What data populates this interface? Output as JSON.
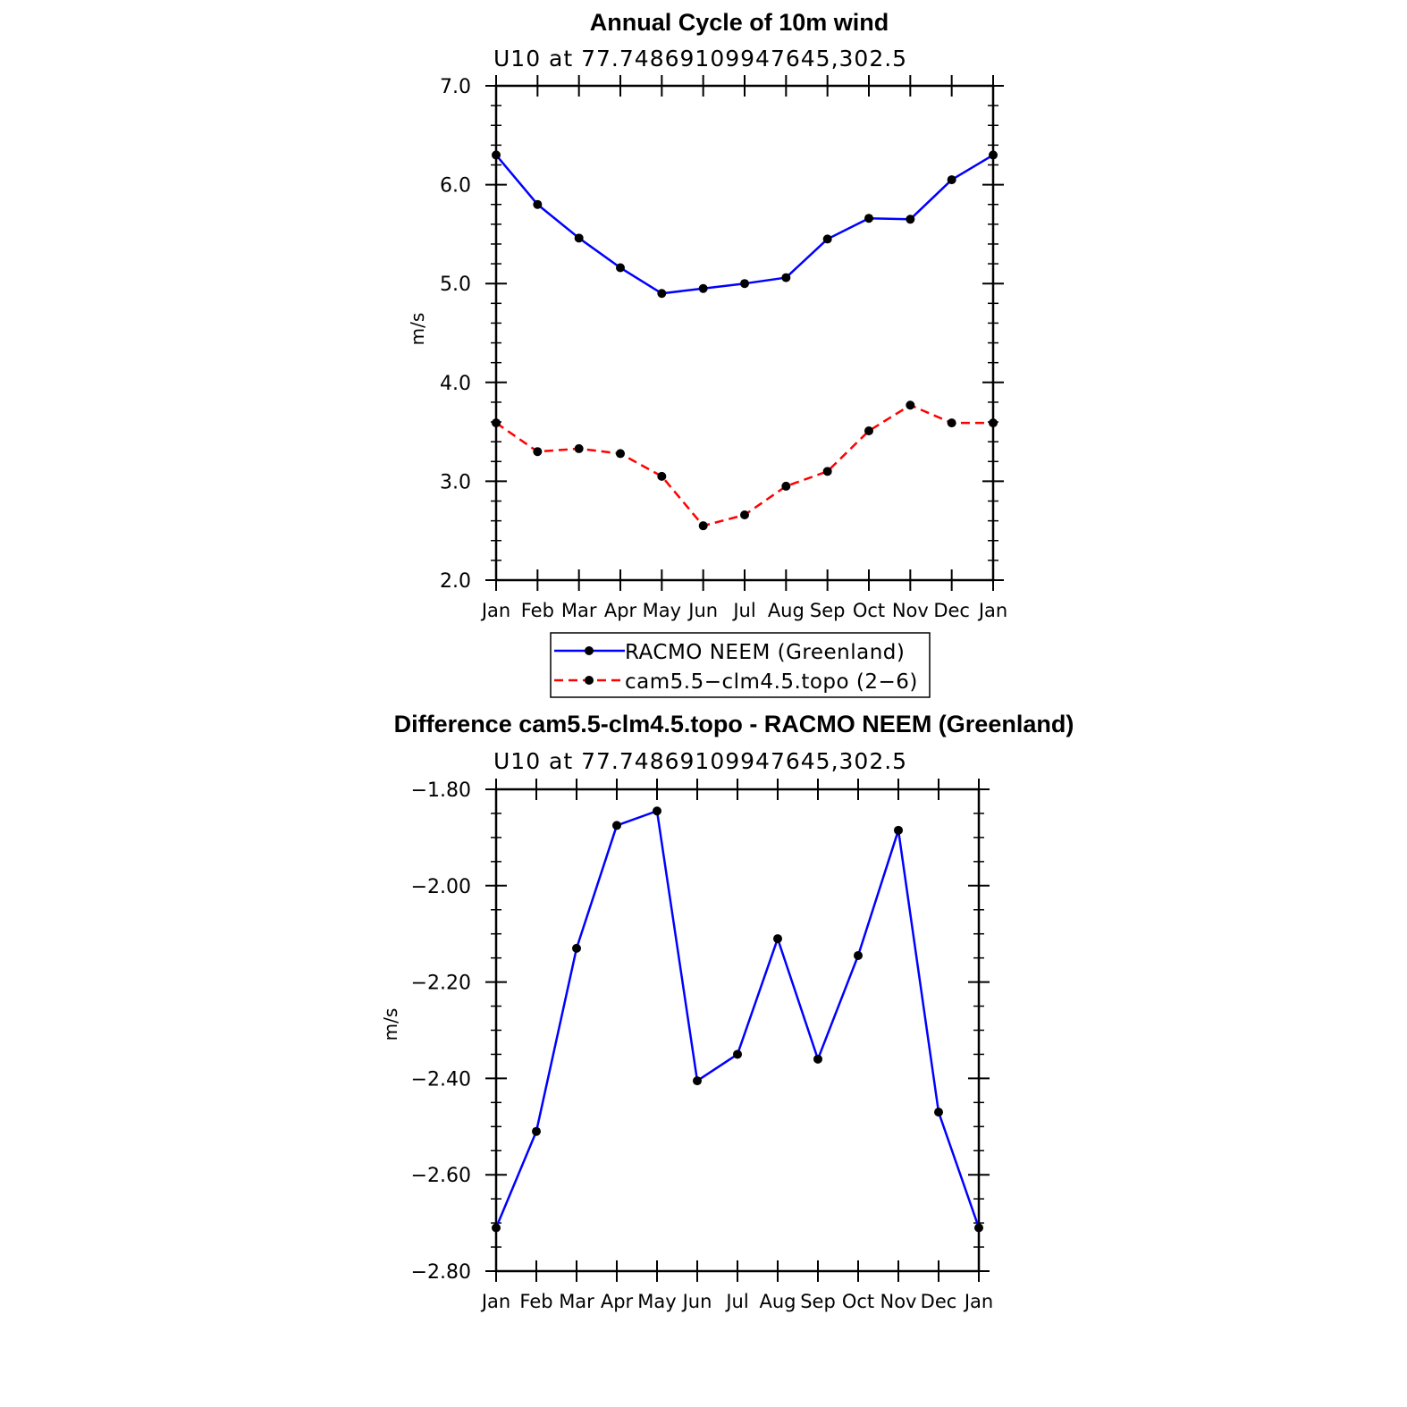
{
  "chart_data": [
    {
      "type": "line",
      "title": "Annual Cycle of 10m wind",
      "subtitle": "U10 at 77.74869109947645,302.5",
      "xlabel": "",
      "ylabel": "m/s",
      "ylim": [
        2.0,
        7.0
      ],
      "yticks": [
        2.0,
        3.0,
        4.0,
        5.0,
        6.0,
        7.0
      ],
      "ytick_labels": [
        "2.0",
        "3.0",
        "4.0",
        "5.0",
        "6.0",
        "7.0"
      ],
      "categories": [
        "Jan",
        "Feb",
        "Mar",
        "Apr",
        "May",
        "Jun",
        "Jul",
        "Aug",
        "Sep",
        "Oct",
        "Nov",
        "Dec",
        "Jan"
      ],
      "grid": false,
      "legend_position": "bottom",
      "series": [
        {
          "name": "RACMO NEEM (Greenland)",
          "color": "#0000ff",
          "dash": "solid",
          "values": [
            6.3,
            5.8,
            5.46,
            5.16,
            4.9,
            4.95,
            5.0,
            5.06,
            5.45,
            5.66,
            5.65,
            6.05,
            6.3
          ]
        },
        {
          "name": "cam5.5−clm4.5.topo (2−6)",
          "color": "#ff0000",
          "dash": "dashed",
          "values": [
            3.59,
            3.3,
            3.33,
            3.28,
            3.05,
            2.55,
            2.66,
            2.95,
            3.1,
            3.51,
            3.77,
            3.59,
            3.59
          ]
        }
      ]
    },
    {
      "type": "line",
      "title": "Difference cam5.5-clm4.5.topo - RACMO NEEM (Greenland)",
      "subtitle": "U10 at 77.74869109947645,302.5",
      "xlabel": "",
      "ylabel": "m/s",
      "ylim": [
        -2.8,
        -1.8
      ],
      "yticks": [
        -2.8,
        -2.6,
        -2.4,
        -2.2,
        -2.0,
        -1.8
      ],
      "ytick_labels": [
        "−2.80",
        "−2.60",
        "−2.40",
        "−2.20",
        "−2.00",
        "−1.80"
      ],
      "categories": [
        "Jan",
        "Feb",
        "Mar",
        "Apr",
        "May",
        "Jun",
        "Jul",
        "Aug",
        "Sep",
        "Oct",
        "Nov",
        "Dec",
        "Jan"
      ],
      "grid": false,
      "series": [
        {
          "name": "Difference",
          "color": "#0000ff",
          "dash": "solid",
          "values": [
            -2.71,
            -2.51,
            -2.13,
            -1.875,
            -1.845,
            -2.405,
            -2.35,
            -2.11,
            -2.36,
            -2.145,
            -1.885,
            -2.47,
            -2.71
          ]
        }
      ]
    }
  ]
}
